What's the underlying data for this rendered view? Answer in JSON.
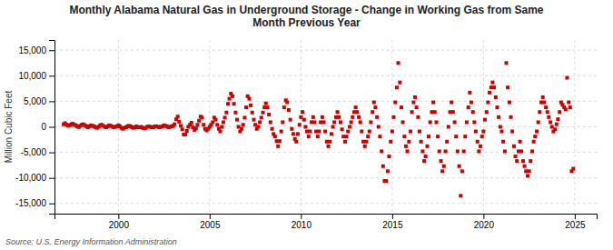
{
  "chart_data": {
    "type": "scatter",
    "title": "Monthly Alabama Natural Gas in Underground Storage - Change in Working Gas from Same\nMonth Previous Year",
    "ylabel": "Million Cubic Feet",
    "annotations": [
      "Source: U.S. Energy Information Administration"
    ],
    "color": "#cc0000",
    "marker": "square",
    "grid": true,
    "xlim": [
      1996.5,
      2026.2
    ],
    "xticks": [
      2000,
      2005,
      2010,
      2015,
      2020,
      2025
    ],
    "ylim": [
      -17000,
      17000
    ],
    "yticks": [
      {
        "value": -15000,
        "label": "-15,000"
      },
      {
        "value": -10000,
        "label": "-10,000"
      },
      {
        "value": -5000,
        "label": "-5,000"
      },
      0,
      {
        "value": 5000,
        "label": "5,000"
      },
      {
        "value": 10000,
        "label": "10,000"
      },
      {
        "value": 15000,
        "label": "15,000"
      }
    ],
    "x": [
      1997.0,
      1997.08,
      1997.17,
      1997.25,
      1997.33,
      1997.42,
      1997.5,
      1997.58,
      1997.67,
      1997.75,
      1997.83,
      1997.92,
      1998.0,
      1998.08,
      1998.17,
      1998.25,
      1998.33,
      1998.42,
      1998.5,
      1998.58,
      1998.67,
      1998.75,
      1998.83,
      1998.92,
      1999.0,
      1999.08,
      1999.17,
      1999.25,
      1999.33,
      1999.42,
      1999.5,
      1999.58,
      1999.67,
      1999.75,
      1999.83,
      1999.92,
      2000.0,
      2000.08,
      2000.17,
      2000.25,
      2000.33,
      2000.42,
      2000.5,
      2000.58,
      2000.67,
      2000.75,
      2000.83,
      2000.92,
      2001.0,
      2001.08,
      2001.17,
      2001.25,
      2001.33,
      2001.42,
      2001.5,
      2001.58,
      2001.67,
      2001.75,
      2001.83,
      2001.92,
      2002.0,
      2002.08,
      2002.17,
      2002.25,
      2002.33,
      2002.42,
      2002.5,
      2002.58,
      2002.67,
      2002.75,
      2002.83,
      2002.92,
      2003.0,
      2003.08,
      2003.17,
      2003.25,
      2003.33,
      2003.42,
      2003.5,
      2003.58,
      2003.67,
      2003.75,
      2003.83,
      2003.92,
      2004.0,
      2004.08,
      2004.17,
      2004.25,
      2004.33,
      2004.42,
      2004.5,
      2004.58,
      2004.67,
      2004.75,
      2004.83,
      2004.92,
      2005.0,
      2005.08,
      2005.17,
      2005.25,
      2005.33,
      2005.42,
      2005.5,
      2005.58,
      2005.67,
      2005.75,
      2005.83,
      2005.92,
      2006.0,
      2006.08,
      2006.17,
      2006.25,
      2006.33,
      2006.42,
      2006.5,
      2006.58,
      2006.67,
      2006.75,
      2006.83,
      2006.92,
      2007.0,
      2007.08,
      2007.17,
      2007.25,
      2007.33,
      2007.42,
      2007.5,
      2007.58,
      2007.67,
      2007.75,
      2007.83,
      2007.92,
      2008.0,
      2008.08,
      2008.17,
      2008.25,
      2008.33,
      2008.42,
      2008.5,
      2008.58,
      2008.67,
      2008.75,
      2008.83,
      2008.92,
      2009.0,
      2009.08,
      2009.17,
      2009.25,
      2009.33,
      2009.42,
      2009.5,
      2009.58,
      2009.67,
      2009.75,
      2009.83,
      2009.92,
      2010.0,
      2010.08,
      2010.17,
      2010.25,
      2010.33,
      2010.42,
      2010.5,
      2010.58,
      2010.67,
      2010.75,
      2010.83,
      2010.92,
      2011.0,
      2011.08,
      2011.17,
      2011.25,
      2011.33,
      2011.42,
      2011.5,
      2011.58,
      2011.67,
      2011.75,
      2011.83,
      2011.92,
      2012.0,
      2012.08,
      2012.17,
      2012.25,
      2012.33,
      2012.42,
      2012.5,
      2012.58,
      2012.67,
      2012.75,
      2012.83,
      2012.92,
      2013.0,
      2013.08,
      2013.17,
      2013.25,
      2013.33,
      2013.42,
      2013.5,
      2013.58,
      2013.67,
      2013.75,
      2013.83,
      2013.92,
      2014.0,
      2014.08,
      2014.17,
      2014.25,
      2014.33,
      2014.42,
      2014.5,
      2014.58,
      2014.67,
      2014.75,
      2014.83,
      2014.92,
      2015.0,
      2015.08,
      2015.17,
      2015.25,
      2015.33,
      2015.42,
      2015.5,
      2015.58,
      2015.67,
      2015.75,
      2015.83,
      2015.92,
      2016.0,
      2016.08,
      2016.17,
      2016.25,
      2016.33,
      2016.42,
      2016.5,
      2016.58,
      2016.67,
      2016.75,
      2016.83,
      2016.92,
      2017.0,
      2017.08,
      2017.17,
      2017.25,
      2017.33,
      2017.42,
      2017.5,
      2017.58,
      2017.67,
      2017.75,
      2017.83,
      2017.92,
      2018.0,
      2018.08,
      2018.17,
      2018.25,
      2018.33,
      2018.42,
      2018.5,
      2018.58,
      2018.67,
      2018.75,
      2018.83,
      2018.92,
      2019.0,
      2019.08,
      2019.17,
      2019.25,
      2019.33,
      2019.42,
      2019.5,
      2019.58,
      2019.67,
      2019.75,
      2019.83,
      2019.92,
      2020.0,
      2020.08,
      2020.17,
      2020.25,
      2020.33,
      2020.42,
      2020.5,
      2020.58,
      2020.67,
      2020.75,
      2020.83,
      2020.92,
      2021.0,
      2021.08,
      2021.17,
      2021.25,
      2021.33,
      2021.42,
      2021.5,
      2021.58,
      2021.67,
      2021.75,
      2021.83,
      2021.92,
      2022.0,
      2022.08,
      2022.17,
      2022.25,
      2022.33,
      2022.42,
      2022.5,
      2022.58,
      2022.67,
      2022.75,
      2022.83,
      2022.92,
      2023.0,
      2023.08,
      2023.17,
      2023.25,
      2023.33,
      2023.42,
      2023.5,
      2023.58,
      2023.67,
      2023.75,
      2023.83,
      2023.92,
      2024.0,
      2024.08,
      2024.17,
      2024.25,
      2024.33,
      2024.42,
      2024.5,
      2024.58,
      2024.67,
      2024.75,
      2024.83,
      2024.92
    ],
    "values": [
      500,
      700,
      400,
      200,
      300,
      500,
      600,
      400,
      300,
      100,
      -50,
      200,
      400,
      500,
      300,
      100,
      -100,
      100,
      300,
      200,
      100,
      -100,
      -200,
      0,
      300,
      400,
      200,
      0,
      -100,
      100,
      300,
      200,
      50,
      -100,
      0,
      100,
      300,
      100,
      -200,
      -400,
      -200,
      -100,
      100,
      200,
      100,
      -100,
      -200,
      -100,
      100,
      -100,
      -100,
      0,
      -200,
      -300,
      -200,
      0,
      100,
      0,
      -100,
      -100,
      100,
      100,
      0,
      -100,
      0,
      100,
      300,
      200,
      100,
      -100,
      0,
      100,
      200,
      500,
      1500,
      2000,
      1000,
      200,
      -500,
      -1500,
      -1500,
      -800,
      0,
      400,
      800,
      -100,
      -600,
      -300,
      400,
      1200,
      2000,
      1800,
      400,
      -400,
      -700,
      -400,
      0,
      400,
      900,
      1800,
      1400,
      400,
      -400,
      -900,
      0,
      900,
      1800,
      2800,
      4500,
      5500,
      6500,
      6000,
      4500,
      2800,
      1400,
      0,
      -900,
      -400,
      400,
      1800,
      3800,
      6000,
      5500,
      4200,
      2800,
      1400,
      400,
      -400,
      0,
      900,
      1800,
      2800,
      3800,
      4600,
      3800,
      2400,
      900,
      -400,
      -1400,
      -1900,
      -2800,
      -3800,
      -2800,
      -900,
      900,
      3800,
      5200,
      4800,
      3300,
      1400,
      -400,
      -1400,
      -2400,
      -2900,
      -1400,
      400,
      1900,
      2900,
      1400,
      0,
      -900,
      -1900,
      -900,
      900,
      1900,
      900,
      -900,
      -1900,
      -900,
      900,
      1900,
      900,
      -900,
      -2900,
      -3800,
      -2900,
      -1400,
      0,
      900,
      1900,
      2900,
      1900,
      900,
      -500,
      -1900,
      -2900,
      -1900,
      -900,
      0,
      900,
      1900,
      2900,
      3800,
      2900,
      1900,
      900,
      -900,
      -2900,
      -3800,
      -2900,
      -1900,
      -900,
      900,
      2900,
      4800,
      3800,
      1900,
      0,
      -1900,
      -4800,
      -7700,
      -10600,
      -10600,
      -8700,
      -5800,
      -2900,
      -900,
      1900,
      4800,
      7700,
      12500,
      8700,
      3800,
      900,
      -1900,
      -3800,
      -4800,
      -2900,
      -900,
      2900,
      4800,
      5800,
      3800,
      1900,
      -900,
      -2900,
      -4800,
      -6700,
      -5800,
      -3800,
      -1900,
      900,
      2900,
      4800,
      2900,
      900,
      -1900,
      -4800,
      -6700,
      -8700,
      -7700,
      -4800,
      -2900,
      0,
      2900,
      4800,
      2900,
      900,
      -1900,
      -4800,
      -7700,
      -13500,
      -8700,
      -4800,
      -1900,
      900,
      3800,
      6700,
      4800,
      2900,
      900,
      -900,
      -2900,
      -4800,
      -3800,
      -1900,
      -900,
      1400,
      2900,
      4800,
      6700,
      7700,
      8700,
      7700,
      5800,
      3800,
      1900,
      0,
      -900,
      -2900,
      -4800,
      12500,
      7700,
      4800,
      1900,
      -900,
      -3800,
      -5800,
      -6700,
      -4800,
      -2900,
      -4800,
      -6700,
      -7700,
      -8700,
      -9600,
      -8700,
      -6700,
      -4800,
      -2900,
      -1900,
      -900,
      900,
      2900,
      4800,
      5800,
      4800,
      3800,
      2900,
      1900,
      900,
      0,
      -900,
      -500,
      500,
      1500,
      2900,
      4800,
      4300,
      3800,
      3400,
      9600,
      4800,
      3800,
      -8700,
      -8200
    ]
  }
}
